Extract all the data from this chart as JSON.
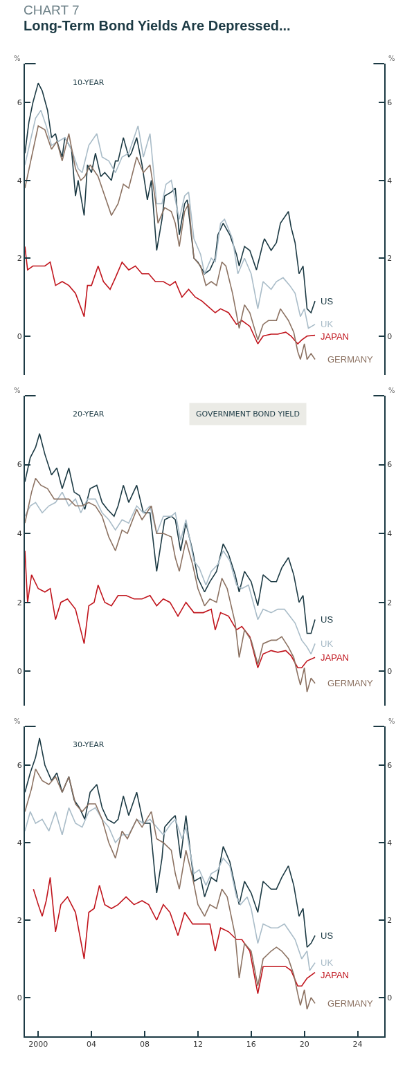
{
  "chart_data": [
    {
      "type": "line",
      "subtitle": "CHART 7",
      "title": "Long-Term Bond Yields Are Depressed...",
      "ylabel": "%",
      "y2label": "%",
      "annotations": [
        "10-YEAR"
      ],
      "legend": false,
      "grid": false,
      "tick_labels": "y",
      "xlim": [
        1999,
        2026
      ],
      "ylim": [
        -1,
        7
      ],
      "yticks": [
        0,
        2,
        4,
        6
      ],
      "y2lim": [
        -1,
        7
      ],
      "y2ticks": [
        0,
        2,
        4,
        6
      ],
      "series": [
        {
          "name": "US",
          "color": "#1c3a44",
          "x": [
            1999.0,
            1999.3,
            1999.6,
            2000.0,
            2000.3,
            2000.7,
            2001.0,
            2001.3,
            2001.5,
            2001.8,
            2002.0,
            2002.5,
            2002.8,
            2003.0,
            2003.45,
            2003.7,
            2004.0,
            2004.3,
            2004.7,
            2005.0,
            2005.5,
            2005.8,
            2006.0,
            2006.4,
            2006.8,
            2007.0,
            2007.4,
            2007.8,
            2008.2,
            2008.5,
            2008.9,
            2009.3,
            2009.5,
            2010.0,
            2010.3,
            2010.6,
            2011.0,
            2011.2,
            2011.7,
            2012.0,
            2012.5,
            2012.9,
            2013.3,
            2013.5,
            2013.9,
            2014.4,
            2014.9,
            2015.1,
            2015.5,
            2015.9,
            2016.4,
            2016.9,
            2017.0,
            2017.5,
            2017.9,
            2018.2,
            2018.8,
            2019.0,
            2019.3,
            2019.6,
            2019.9,
            2020.2,
            2020.5,
            2020.8
          ],
          "values": [
            4.7,
            5.5,
            6.0,
            6.5,
            6.3,
            5.8,
            5.1,
            5.2,
            4.9,
            4.6,
            5.1,
            4.8,
            3.6,
            4.0,
            3.1,
            4.4,
            4.2,
            4.7,
            4.1,
            4.2,
            4.0,
            4.5,
            4.5,
            5.1,
            4.6,
            4.7,
            5.1,
            4.4,
            3.5,
            4.0,
            2.2,
            3.0,
            3.6,
            3.7,
            3.8,
            2.6,
            3.4,
            3.5,
            2.0,
            1.9,
            1.6,
            1.7,
            2.0,
            2.6,
            2.9,
            2.6,
            2.1,
            1.8,
            2.3,
            2.2,
            1.7,
            2.4,
            2.5,
            2.2,
            2.4,
            2.9,
            3.2,
            2.8,
            2.4,
            1.6,
            1.8,
            0.7,
            0.6,
            0.9
          ]
        },
        {
          "name": "UK",
          "color": "#a9bcc8",
          "x": [
            1999.0,
            1999.4,
            1999.8,
            2000.2,
            2000.6,
            2001.0,
            2001.5,
            2002.0,
            2002.5,
            2003.0,
            2003.3,
            2003.8,
            2004.4,
            2004.8,
            2005.3,
            2005.8,
            2006.3,
            2006.8,
            2007.5,
            2007.9,
            2008.4,
            2008.9,
            2009.3,
            2009.6,
            2010.0,
            2010.6,
            2011.0,
            2011.3,
            2011.7,
            2012.2,
            2012.5,
            2013.0,
            2013.3,
            2013.7,
            2014.0,
            2014.6,
            2015.0,
            2015.5,
            2016.0,
            2016.5,
            2016.9,
            2017.5,
            2017.9,
            2018.4,
            2018.9,
            2019.3,
            2019.7,
            2020.0,
            2020.3,
            2020.8
          ],
          "values": [
            4.4,
            5.0,
            5.6,
            5.8,
            5.4,
            4.9,
            5.0,
            5.1,
            4.8,
            4.3,
            4.2,
            4.9,
            5.2,
            4.6,
            4.5,
            4.2,
            4.6,
            4.7,
            5.4,
            4.6,
            5.2,
            3.4,
            3.4,
            3.9,
            4.0,
            3.0,
            3.6,
            3.7,
            2.5,
            2.1,
            1.6,
            2.0,
            1.9,
            2.9,
            3.0,
            2.5,
            1.6,
            2.0,
            1.6,
            0.7,
            1.4,
            1.2,
            1.4,
            1.5,
            1.3,
            1.1,
            0.5,
            0.7,
            0.2,
            0.3
          ]
        },
        {
          "name": "JAPAN",
          "color": "#c0141c",
          "x": [
            1999.0,
            1999.2,
            1999.6,
            2000.0,
            2000.5,
            2000.9,
            2001.3,
            2001.8,
            2002.3,
            2002.8,
            2003.45,
            2003.7,
            2004.0,
            2004.5,
            2004.9,
            2005.4,
            2005.8,
            2006.3,
            2006.8,
            2007.3,
            2007.8,
            2008.3,
            2008.8,
            2009.4,
            2009.9,
            2010.3,
            2010.8,
            2011.3,
            2011.8,
            2012.3,
            2012.8,
            2013.3,
            2013.7,
            2014.3,
            2014.9,
            2015.3,
            2015.9,
            2016.5,
            2016.9,
            2017.5,
            2018.0,
            2018.6,
            2019.0,
            2019.5,
            2019.8,
            2020.2,
            2020.8
          ],
          "values": [
            2.3,
            1.7,
            1.8,
            1.8,
            1.8,
            1.9,
            1.3,
            1.4,
            1.3,
            1.1,
            0.5,
            1.3,
            1.3,
            1.8,
            1.4,
            1.2,
            1.5,
            1.9,
            1.7,
            1.8,
            1.6,
            1.6,
            1.4,
            1.4,
            1.3,
            1.4,
            1.0,
            1.2,
            1.0,
            0.9,
            0.75,
            0.6,
            0.7,
            0.6,
            0.3,
            0.4,
            0.25,
            -0.2,
            0.0,
            0.05,
            0.05,
            0.1,
            0.0,
            -0.2,
            -0.1,
            0.0,
            0.02
          ]
        },
        {
          "name": "GERMANY",
          "color": "#8c7262",
          "x": [
            1999.0,
            1999.5,
            2000.0,
            2000.5,
            2001.0,
            2001.4,
            2001.8,
            2002.3,
            2002.8,
            2003.2,
            2003.5,
            2003.9,
            2004.5,
            2005.0,
            2005.5,
            2006.0,
            2006.4,
            2006.8,
            2007.4,
            2007.9,
            2008.4,
            2008.8,
            2009.0,
            2009.5,
            2010.0,
            2010.3,
            2010.6,
            2011.0,
            2011.3,
            2011.7,
            2012.2,
            2012.6,
            2013.0,
            2013.4,
            2013.8,
            2014.1,
            2014.6,
            2015.1,
            2015.5,
            2015.9,
            2016.5,
            2016.9,
            2017.3,
            2017.9,
            2018.2,
            2018.8,
            2019.2,
            2019.5,
            2019.7,
            2020.0,
            2020.2,
            2020.5,
            2020.8
          ],
          "values": [
            3.8,
            4.6,
            5.4,
            5.3,
            4.8,
            5.0,
            4.5,
            5.2,
            4.3,
            4.0,
            4.1,
            4.4,
            4.1,
            3.6,
            3.1,
            3.4,
            3.9,
            3.8,
            4.6,
            4.2,
            4.4,
            3.5,
            2.9,
            3.3,
            3.2,
            2.9,
            2.3,
            3.2,
            3.4,
            2.0,
            1.8,
            1.3,
            1.4,
            1.3,
            1.9,
            1.8,
            1.1,
            0.2,
            0.8,
            0.6,
            -0.1,
            0.3,
            0.4,
            0.4,
            0.7,
            0.4,
            0.1,
            -0.4,
            -0.6,
            -0.2,
            -0.6,
            -0.45,
            -0.6
          ]
        }
      ]
    },
    {
      "type": "line",
      "ylabel": "%",
      "y2label": "%",
      "annotations": [
        "20-YEAR",
        "GOVERNMENT BOND YIELD"
      ],
      "legend": false,
      "grid": false,
      "tick_labels": "y",
      "xlim": [
        1999,
        2026
      ],
      "ylim": [
        -1,
        8
      ],
      "yticks": [
        0,
        2,
        4,
        6
      ],
      "y2lim": [
        -1,
        8
      ],
      "y2ticks": [
        0,
        2,
        4,
        6
      ],
      "series": [
        {
          "name": "US",
          "color": "#1c3a44",
          "x": [
            1999.0,
            1999.4,
            1999.8,
            2000.1,
            2000.5,
            2001.0,
            2001.4,
            2001.8,
            2002.3,
            2002.7,
            2003.1,
            2003.5,
            2003.9,
            2004.4,
            2004.8,
            2005.2,
            2005.7,
            2006.0,
            2006.4,
            2006.8,
            2007.4,
            2007.9,
            2008.4,
            2008.9,
            2009.3,
            2009.5,
            2010.0,
            2010.3,
            2010.7,
            2011.1,
            2011.6,
            2012.0,
            2012.5,
            2012.9,
            2013.4,
            2013.9,
            2014.3,
            2014.8,
            2015.1,
            2015.5,
            2016.0,
            2016.5,
            2016.9,
            2017.5,
            2017.9,
            2018.3,
            2018.8,
            2019.2,
            2019.6,
            2019.9,
            2020.2,
            2020.5,
            2020.8
          ],
          "values": [
            5.5,
            6.2,
            6.5,
            6.9,
            6.3,
            5.7,
            5.9,
            5.3,
            5.9,
            5.2,
            5.1,
            4.7,
            5.3,
            5.4,
            4.9,
            4.7,
            4.5,
            4.8,
            5.4,
            4.9,
            5.4,
            4.6,
            4.6,
            2.9,
            3.9,
            4.4,
            4.5,
            4.4,
            3.5,
            4.3,
            3.5,
            2.7,
            2.3,
            2.6,
            2.9,
            3.7,
            3.4,
            2.8,
            2.3,
            2.9,
            2.6,
            1.9,
            2.8,
            2.6,
            2.6,
            3.0,
            3.3,
            2.8,
            2.0,
            2.2,
            1.1,
            1.1,
            1.5
          ]
        },
        {
          "name": "UK",
          "color": "#a9bcc8",
          "x": [
            1999.0,
            1999.4,
            1999.8,
            2000.3,
            2000.8,
            2001.3,
            2001.8,
            2002.3,
            2002.8,
            2003.2,
            2003.7,
            2004.3,
            2004.8,
            2005.3,
            2005.8,
            2006.3,
            2006.8,
            2007.4,
            2007.9,
            2008.4,
            2008.9,
            2009.4,
            2010.0,
            2010.3,
            2010.7,
            2011.1,
            2011.7,
            2012.1,
            2012.6,
            2013.0,
            2013.5,
            2013.9,
            2014.4,
            2014.9,
            2015.3,
            2015.8,
            2016.5,
            2016.9,
            2017.5,
            2018.0,
            2018.5,
            2018.9,
            2019.3,
            2019.8,
            2020.2,
            2020.5,
            2020.8
          ],
          "values": [
            4.5,
            4.8,
            4.9,
            4.6,
            4.8,
            4.9,
            5.2,
            4.8,
            5.0,
            4.6,
            5.0,
            5.0,
            4.6,
            4.4,
            4.1,
            4.4,
            4.3,
            4.8,
            4.6,
            4.8,
            4.0,
            4.5,
            4.5,
            4.6,
            3.8,
            4.4,
            3.2,
            3.0,
            2.5,
            2.9,
            3.1,
            3.5,
            3.2,
            2.5,
            2.4,
            2.5,
            1.5,
            1.8,
            1.7,
            1.8,
            1.8,
            1.6,
            1.4,
            0.9,
            0.7,
            0.5,
            0.8
          ]
        },
        {
          "name": "JAPAN",
          "color": "#c0141c",
          "x": [
            1999.0,
            1999.2,
            1999.5,
            2000.0,
            2000.5,
            2000.9,
            2001.3,
            2001.7,
            2002.2,
            2002.8,
            2003.45,
            2003.8,
            2004.2,
            2004.5,
            2005.0,
            2005.5,
            2006.0,
            2006.6,
            2007.2,
            2007.8,
            2008.4,
            2008.9,
            2009.4,
            2009.9,
            2010.5,
            2011.1,
            2011.7,
            2012.4,
            2013.0,
            2013.3,
            2013.7,
            2014.3,
            2014.9,
            2015.3,
            2015.9,
            2016.5,
            2016.9,
            2017.5,
            2018.0,
            2018.6,
            2019.0,
            2019.5,
            2019.8,
            2020.2,
            2020.8
          ],
          "values": [
            3.5,
            2.0,
            2.8,
            2.4,
            2.3,
            2.4,
            1.5,
            2.0,
            2.1,
            1.8,
            0.8,
            1.9,
            2.0,
            2.5,
            2.0,
            1.9,
            2.2,
            2.2,
            2.1,
            2.1,
            2.2,
            1.9,
            2.1,
            2.0,
            1.6,
            2.0,
            1.7,
            1.7,
            1.8,
            1.2,
            1.7,
            1.6,
            1.2,
            1.3,
            1.0,
            0.1,
            0.5,
            0.6,
            0.55,
            0.6,
            0.45,
            0.1,
            0.1,
            0.3,
            0.4
          ]
        },
        {
          "name": "GERMANY",
          "color": "#8c7262",
          "x": [
            1999.0,
            1999.5,
            1999.8,
            2000.2,
            2000.7,
            2001.2,
            2001.8,
            2002.3,
            2002.8,
            2003.3,
            2003.8,
            2004.3,
            2004.8,
            2005.3,
            2005.8,
            2006.3,
            2006.7,
            2007.4,
            2007.8,
            2008.5,
            2008.9,
            2009.4,
            2010.0,
            2010.3,
            2010.6,
            2011.1,
            2011.6,
            2012.0,
            2012.5,
            2012.9,
            2013.4,
            2013.8,
            2014.2,
            2014.8,
            2015.1,
            2015.5,
            2016.0,
            2016.5,
            2016.9,
            2017.5,
            2017.9,
            2018.3,
            2018.8,
            2019.2,
            2019.5,
            2019.7,
            2020.0,
            2020.2,
            2020.5,
            2020.8
          ],
          "values": [
            4.3,
            5.2,
            5.6,
            5.4,
            5.3,
            5.0,
            5.0,
            5.0,
            4.8,
            4.8,
            4.9,
            4.8,
            4.5,
            3.9,
            3.5,
            4.1,
            4.0,
            4.7,
            4.4,
            4.8,
            4.0,
            4.0,
            3.9,
            3.3,
            2.9,
            3.8,
            3.1,
            2.4,
            1.9,
            2.1,
            2.0,
            2.7,
            2.4,
            1.4,
            0.4,
            1.2,
            0.9,
            0.2,
            0.8,
            0.9,
            0.9,
            1.0,
            0.7,
            0.4,
            -0.1,
            -0.4,
            0.1,
            -0.6,
            -0.2,
            -0.35
          ]
        }
      ]
    },
    {
      "type": "line",
      "ylabel": "%",
      "y2label": "%",
      "annotations": [
        "30-YEAR"
      ],
      "legend": false,
      "grid": false,
      "xlim": [
        1999,
        2026
      ],
      "xticks": [
        {
          "value": 2000,
          "label": "2000"
        },
        {
          "value": 2004,
          "label": "04"
        },
        {
          "value": 2008,
          "label": "08"
        },
        {
          "value": 2012,
          "label": "12"
        },
        {
          "value": 2016,
          "label": "16"
        },
        {
          "value": 2020,
          "label": "20"
        },
        {
          "value": 2024,
          "label": "24"
        }
      ],
      "ylim": [
        -1,
        7
      ],
      "yticks": [
        0,
        2,
        4,
        6
      ],
      "y2lim": [
        -1,
        7
      ],
      "y2ticks": [
        0,
        2,
        4,
        6
      ],
      "series": [
        {
          "name": "US",
          "color": "#1c3a44",
          "x": [
            1999.0,
            1999.4,
            1999.8,
            2000.1,
            2000.5,
            2001.0,
            2001.4,
            2001.8,
            2002.3,
            2002.7,
            2003.1,
            2003.5,
            2003.9,
            2004.4,
            2004.8,
            2005.2,
            2005.7,
            2006.0,
            2006.4,
            2006.8,
            2007.4,
            2007.9,
            2008.4,
            2008.9,
            2009.3,
            2009.5,
            2010.0,
            2010.3,
            2010.7,
            2011.1,
            2011.7,
            2012.2,
            2012.5,
            2013.0,
            2013.4,
            2013.9,
            2014.4,
            2014.9,
            2015.1,
            2015.5,
            2016.0,
            2016.5,
            2016.9,
            2017.5,
            2017.9,
            2018.3,
            2018.8,
            2019.2,
            2019.6,
            2019.9,
            2020.2,
            2020.5,
            2020.8
          ],
          "values": [
            5.3,
            5.8,
            6.2,
            6.7,
            6.0,
            5.6,
            5.8,
            5.3,
            5.7,
            5.1,
            4.9,
            4.6,
            5.3,
            5.5,
            4.9,
            4.6,
            4.5,
            4.6,
            5.2,
            4.7,
            5.3,
            4.5,
            4.5,
            2.7,
            3.6,
            4.4,
            4.6,
            4.7,
            3.6,
            4.7,
            3.0,
            3.1,
            2.6,
            3.1,
            3.0,
            3.9,
            3.5,
            2.7,
            2.4,
            3.0,
            2.7,
            2.2,
            3.0,
            2.8,
            2.8,
            3.1,
            3.4,
            2.9,
            2.1,
            2.3,
            1.3,
            1.4,
            1.6
          ]
        },
        {
          "name": "UK",
          "color": "#a9bcc8",
          "x": [
            1999.0,
            1999.4,
            1999.8,
            2000.3,
            2000.8,
            2001.3,
            2001.8,
            2002.3,
            2002.8,
            2003.3,
            2003.8,
            2004.3,
            2004.8,
            2005.3,
            2005.8,
            2006.3,
            2006.8,
            2007.4,
            2007.9,
            2008.4,
            2008.9,
            2009.4,
            2010.0,
            2010.3,
            2010.8,
            2011.1,
            2011.7,
            2012.1,
            2012.6,
            2013.0,
            2013.5,
            2013.9,
            2014.4,
            2014.9,
            2015.2,
            2015.7,
            2016.0,
            2016.5,
            2016.9,
            2017.5,
            2018.0,
            2018.5,
            2018.9,
            2019.3,
            2019.8,
            2020.2,
            2020.4,
            2020.8
          ],
          "values": [
            4.3,
            4.8,
            4.5,
            4.6,
            4.3,
            4.8,
            4.2,
            4.9,
            4.5,
            4.4,
            4.8,
            4.9,
            4.6,
            4.4,
            4.0,
            4.2,
            4.2,
            4.6,
            4.5,
            4.6,
            4.4,
            4.2,
            4.5,
            4.6,
            4.1,
            4.4,
            3.2,
            3.3,
            2.9,
            3.2,
            3.3,
            3.6,
            3.4,
            2.6,
            2.4,
            2.6,
            2.3,
            1.4,
            1.9,
            1.8,
            1.8,
            1.9,
            1.7,
            1.5,
            1.0,
            1.2,
            0.7,
            0.9
          ]
        },
        {
          "name": "JAPAN",
          "color": "#c0141c",
          "x": [
            1999.64,
            2000.0,
            2000.3,
            2000.6,
            2000.9,
            2001.3,
            2001.7,
            2002.2,
            2002.8,
            2003.45,
            2003.8,
            2004.2,
            2004.6,
            2005.0,
            2005.5,
            2006.0,
            2006.6,
            2007.2,
            2007.8,
            2008.3,
            2008.9,
            2009.4,
            2009.9,
            2010.5,
            2011.0,
            2011.6,
            2012.3,
            2012.9,
            2013.3,
            2013.7,
            2014.3,
            2014.9,
            2015.3,
            2015.9,
            2016.5,
            2016.9,
            2017.5,
            2018.0,
            2018.6,
            2019.0,
            2019.5,
            2019.8,
            2020.2,
            2020.8
          ],
          "values": [
            2.8,
            2.4,
            2.1,
            2.5,
            3.1,
            1.7,
            2.4,
            2.6,
            2.2,
            1.0,
            2.2,
            2.3,
            2.9,
            2.4,
            2.3,
            2.4,
            2.6,
            2.4,
            2.5,
            2.4,
            2.0,
            2.4,
            2.2,
            1.6,
            2.2,
            1.9,
            1.9,
            1.9,
            1.2,
            1.8,
            1.7,
            1.5,
            1.5,
            1.2,
            0.1,
            0.8,
            0.8,
            0.8,
            0.8,
            0.7,
            0.3,
            0.3,
            0.5,
            0.65
          ]
        },
        {
          "name": "GERMANY",
          "color": "#8c7262",
          "x": [
            1999.0,
            1999.5,
            1999.8,
            2000.3,
            2000.8,
            2001.3,
            2001.8,
            2002.3,
            2002.8,
            2003.3,
            2003.8,
            2004.3,
            2004.8,
            2005.3,
            2005.8,
            2006.3,
            2006.7,
            2007.4,
            2007.8,
            2008.5,
            2008.9,
            2009.4,
            2010.0,
            2010.3,
            2010.6,
            2011.1,
            2011.6,
            2012.0,
            2012.5,
            2012.9,
            2013.4,
            2013.8,
            2014.2,
            2014.8,
            2015.1,
            2015.5,
            2016.0,
            2016.5,
            2016.9,
            2017.5,
            2017.9,
            2018.3,
            2018.8,
            2019.2,
            2019.5,
            2019.7,
            2020.0,
            2020.2,
            2020.5,
            2020.8
          ],
          "values": [
            4.8,
            5.4,
            5.9,
            5.6,
            5.5,
            5.7,
            5.3,
            5.7,
            5.0,
            4.8,
            5.0,
            5.0,
            4.6,
            4.0,
            3.6,
            4.3,
            4.1,
            4.6,
            4.4,
            4.8,
            4.1,
            4.0,
            3.8,
            3.2,
            2.8,
            3.8,
            3.1,
            2.4,
            2.1,
            2.4,
            2.3,
            2.8,
            2.6,
            1.6,
            0.5,
            1.4,
            1.2,
            0.3,
            1.0,
            1.2,
            1.3,
            1.2,
            1.0,
            0.6,
            0.1,
            -0.2,
            0.2,
            -0.3,
            0.0,
            -0.15
          ]
        }
      ]
    }
  ]
}
